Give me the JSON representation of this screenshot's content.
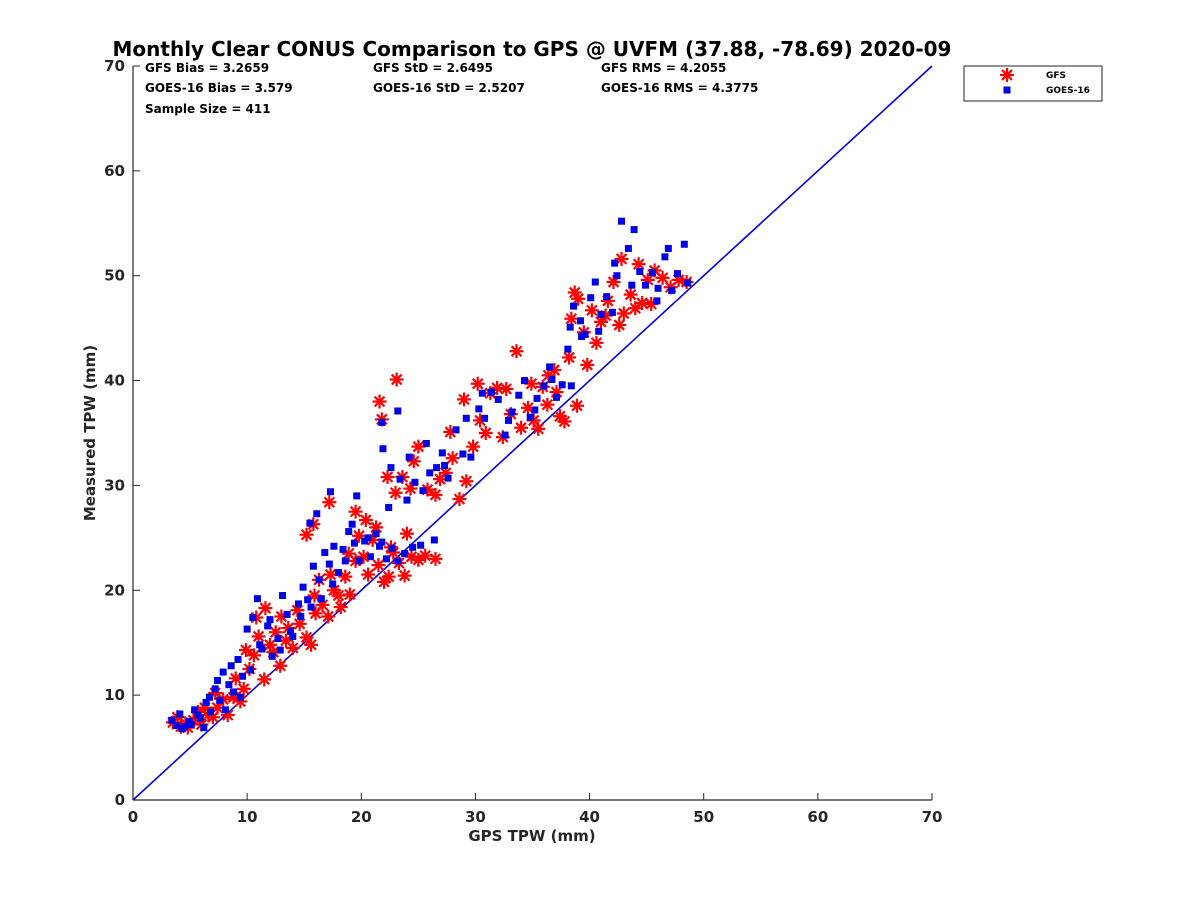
{
  "chart_data": {
    "type": "scatter",
    "title": "Monthly Clear CONUS Comparison to GPS @ UVFM (37.88, -78.69) 2020-09",
    "xlabel": "GPS TPW (mm)",
    "ylabel": "Measured TPW (mm)",
    "xlim": [
      0,
      70
    ],
    "ylim": [
      0,
      70
    ],
    "xticks": [
      0,
      10,
      20,
      30,
      40,
      50,
      60,
      70
    ],
    "yticks": [
      0,
      10,
      20,
      30,
      40,
      50,
      60,
      70
    ],
    "grid": false,
    "legend_position": "top-right, outside plot",
    "reference_line": {
      "x": [
        0,
        70
      ],
      "y": [
        0,
        70
      ],
      "color": "#0000e6"
    },
    "stats": [
      "GFS Bias = 3.2659",
      "GFS StD = 2.6495",
      "GFS RMS = 4.2055",
      "GOES-16 Bias = 3.579",
      "GOES-16 StD = 2.5207",
      "GOES-16 RMS = 4.3775",
      "Sample Size = 411"
    ],
    "series": [
      {
        "name": "GFS",
        "marker": "asterisk",
        "color": "#ff0000",
        "points": [
          [
            3.5,
            7.4
          ],
          [
            4.2,
            7.0
          ],
          [
            4.8,
            6.9
          ],
          [
            5.3,
            7.6
          ],
          [
            6.0,
            7.2
          ],
          [
            6.6,
            8.1
          ],
          [
            7.0,
            7.9
          ],
          [
            7.4,
            8.8
          ],
          [
            7.9,
            9.6
          ],
          [
            8.3,
            8.1
          ],
          [
            8.8,
            9.8
          ],
          [
            9.4,
            9.4
          ],
          [
            9.7,
            10.6
          ],
          [
            10.2,
            12.5
          ],
          [
            10.6,
            13.8
          ],
          [
            11.0,
            15.6
          ],
          [
            11.5,
            11.5
          ],
          [
            12.0,
            14.8
          ],
          [
            12.5,
            16.0
          ],
          [
            13.0,
            17.5
          ],
          [
            13.6,
            16.4
          ],
          [
            14.0,
            14.5
          ],
          [
            14.6,
            16.8
          ],
          [
            15.2,
            15.5
          ],
          [
            15.6,
            14.8
          ],
          [
            16.0,
            17.8
          ],
          [
            16.6,
            18.6
          ],
          [
            17.1,
            17.5
          ],
          [
            17.6,
            20.0
          ],
          [
            18.2,
            18.4
          ],
          [
            18.6,
            21.3
          ],
          [
            19.0,
            19.6
          ],
          [
            19.5,
            22.8
          ],
          [
            19.8,
            25.2
          ],
          [
            20.2,
            23.2
          ],
          [
            20.6,
            21.5
          ],
          [
            21.0,
            24.8
          ],
          [
            21.5,
            22.4
          ],
          [
            22.0,
            20.8
          ],
          [
            22.4,
            21.3
          ],
          [
            22.8,
            23.6
          ],
          [
            23.3,
            22.6
          ],
          [
            23.8,
            21.4
          ],
          [
            24.4,
            23.2
          ],
          [
            25.0,
            22.9
          ],
          [
            25.6,
            23.3
          ],
          [
            26.5,
            23.0
          ],
          [
            15.2,
            25.3
          ],
          [
            15.8,
            26.3
          ],
          [
            17.2,
            28.4
          ],
          [
            19.5,
            27.5
          ],
          [
            21.6,
            38.0
          ],
          [
            23.1,
            40.1
          ],
          [
            21.8,
            36.3
          ],
          [
            22.3,
            30.8
          ],
          [
            23.0,
            29.3
          ],
          [
            23.6,
            30.8
          ],
          [
            24.3,
            29.7
          ],
          [
            25.0,
            33.7
          ],
          [
            24.6,
            32.3
          ],
          [
            25.8,
            29.6
          ],
          [
            26.5,
            29.1
          ],
          [
            27.4,
            31.2
          ],
          [
            28.0,
            32.6
          ],
          [
            28.6,
            28.7
          ],
          [
            29.2,
            30.4
          ],
          [
            29.8,
            33.7
          ],
          [
            30.4,
            36.2
          ],
          [
            30.9,
            35.0
          ],
          [
            31.3,
            38.8
          ],
          [
            31.9,
            39.3
          ],
          [
            32.4,
            34.6
          ],
          [
            33.1,
            36.8
          ],
          [
            33.6,
            42.8
          ],
          [
            34.0,
            35.5
          ],
          [
            34.6,
            37.4
          ],
          [
            35.1,
            36.2
          ],
          [
            35.5,
            35.4
          ],
          [
            35.9,
            39.4
          ],
          [
            36.4,
            40.5
          ],
          [
            36.9,
            41.0
          ],
          [
            37.4,
            36.6
          ],
          [
            37.8,
            36.1
          ],
          [
            38.2,
            42.2
          ],
          [
            38.4,
            45.9
          ],
          [
            38.7,
            48.4
          ],
          [
            39.0,
            47.8
          ],
          [
            39.5,
            44.6
          ],
          [
            39.8,
            41.5
          ],
          [
            40.2,
            46.7
          ],
          [
            40.6,
            43.6
          ],
          [
            41.0,
            45.6
          ],
          [
            41.6,
            47.6
          ],
          [
            42.1,
            49.4
          ],
          [
            42.6,
            45.3
          ],
          [
            43.0,
            46.4
          ],
          [
            43.6,
            48.2
          ],
          [
            44.0,
            46.9
          ],
          [
            44.6,
            47.4
          ],
          [
            45.1,
            49.6
          ],
          [
            45.7,
            50.5
          ],
          [
            46.4,
            49.8
          ],
          [
            47.1,
            48.9
          ],
          [
            47.8,
            49.6
          ],
          [
            48.5,
            49.4
          ],
          [
            3.9,
            7.9
          ],
          [
            4.6,
            7.3
          ],
          [
            5.7,
            8.4
          ],
          [
            6.3,
            8.8
          ],
          [
            7.2,
            10.2
          ],
          [
            9.0,
            11.6
          ],
          [
            9.9,
            14.3
          ],
          [
            10.8,
            17.4
          ],
          [
            11.6,
            18.3
          ],
          [
            12.3,
            14.1
          ],
          [
            12.9,
            12.8
          ],
          [
            13.4,
            15.2
          ],
          [
            14.4,
            18.1
          ],
          [
            15.9,
            19.5
          ],
          [
            16.3,
            21.0
          ],
          [
            17.3,
            21.5
          ],
          [
            18.0,
            19.5
          ],
          [
            18.9,
            23.5
          ],
          [
            20.4,
            26.7
          ],
          [
            21.3,
            26.0
          ],
          [
            22.6,
            24.1
          ],
          [
            24.0,
            25.4
          ],
          [
            26.9,
            30.6
          ],
          [
            27.8,
            35.1
          ],
          [
            29.0,
            38.2
          ],
          [
            30.2,
            39.7
          ],
          [
            32.7,
            39.2
          ],
          [
            34.9,
            39.7
          ],
          [
            36.3,
            37.7
          ],
          [
            37.1,
            38.9
          ],
          [
            38.9,
            37.6
          ],
          [
            41.4,
            46.2
          ],
          [
            42.8,
            51.6
          ],
          [
            44.3,
            51.1
          ],
          [
            45.4,
            47.3
          ]
        ]
      },
      {
        "name": "GOES-16",
        "marker": "square",
        "color": "#0000e6",
        "points": [
          [
            3.4,
            7.6
          ],
          [
            3.8,
            7.1
          ],
          [
            4.1,
            8.2
          ],
          [
            4.5,
            7.0
          ],
          [
            4.9,
            7.5
          ],
          [
            5.4,
            8.6
          ],
          [
            5.9,
            7.8
          ],
          [
            6.4,
            9.3
          ],
          [
            6.8,
            8.4
          ],
          [
            7.2,
            10.6
          ],
          [
            7.6,
            9.5
          ],
          [
            7.9,
            12.2
          ],
          [
            8.4,
            11.0
          ],
          [
            8.8,
            10.3
          ],
          [
            9.2,
            13.4
          ],
          [
            9.6,
            11.8
          ],
          [
            10.0,
            16.3
          ],
          [
            10.5,
            17.4
          ],
          [
            10.9,
            19.2
          ],
          [
            11.3,
            14.4
          ],
          [
            11.8,
            16.6
          ],
          [
            12.2,
            13.7
          ],
          [
            12.7,
            15.4
          ],
          [
            13.1,
            19.5
          ],
          [
            13.5,
            17.7
          ],
          [
            14.0,
            15.6
          ],
          [
            14.5,
            18.7
          ],
          [
            14.9,
            20.3
          ],
          [
            15.3,
            19.1
          ],
          [
            15.8,
            22.3
          ],
          [
            16.3,
            21.0
          ],
          [
            16.8,
            23.6
          ],
          [
            17.2,
            22.5
          ],
          [
            17.6,
            24.2
          ],
          [
            18.0,
            21.7
          ],
          [
            18.4,
            23.9
          ],
          [
            18.9,
            25.6
          ],
          [
            19.4,
            24.5
          ],
          [
            19.8,
            22.8
          ],
          [
            20.3,
            24.7
          ],
          [
            20.8,
            23.2
          ],
          [
            21.3,
            25.4
          ],
          [
            21.8,
            24.6
          ],
          [
            22.2,
            23.0
          ],
          [
            22.7,
            24.0
          ],
          [
            23.2,
            22.8
          ],
          [
            23.8,
            23.5
          ],
          [
            24.5,
            24.1
          ],
          [
            25.2,
            24.3
          ],
          [
            26.4,
            24.8
          ],
          [
            15.5,
            26.4
          ],
          [
            16.1,
            27.3
          ],
          [
            17.3,
            29.4
          ],
          [
            19.6,
            29.0
          ],
          [
            21.8,
            36.0
          ],
          [
            23.2,
            37.1
          ],
          [
            21.9,
            33.5
          ],
          [
            22.6,
            31.7
          ],
          [
            23.4,
            30.6
          ],
          [
            24.0,
            28.6
          ],
          [
            24.7,
            30.3
          ],
          [
            25.4,
            29.5
          ],
          [
            26.0,
            31.2
          ],
          [
            26.6,
            31.7
          ],
          [
            27.1,
            33.1
          ],
          [
            27.6,
            30.7
          ],
          [
            28.3,
            35.3
          ],
          [
            28.9,
            33.0
          ],
          [
            29.6,
            32.7
          ],
          [
            30.3,
            37.3
          ],
          [
            30.8,
            36.4
          ],
          [
            31.4,
            38.9
          ],
          [
            32.0,
            38.2
          ],
          [
            32.6,
            34.8
          ],
          [
            33.2,
            37.0
          ],
          [
            33.8,
            38.6
          ],
          [
            34.3,
            40.0
          ],
          [
            34.8,
            36.5
          ],
          [
            35.4,
            38.3
          ],
          [
            36.0,
            39.5
          ],
          [
            36.5,
            41.3
          ],
          [
            37.1,
            38.4
          ],
          [
            37.6,
            39.6
          ],
          [
            38.1,
            43.0
          ],
          [
            38.3,
            45.1
          ],
          [
            38.6,
            47.1
          ],
          [
            39.2,
            45.7
          ],
          [
            39.6,
            44.4
          ],
          [
            40.1,
            47.9
          ],
          [
            40.5,
            49.4
          ],
          [
            41.0,
            46.3
          ],
          [
            41.5,
            48.0
          ],
          [
            42.0,
            46.5
          ],
          [
            42.4,
            50.0
          ],
          [
            42.8,
            55.2
          ],
          [
            43.4,
            52.6
          ],
          [
            43.9,
            54.4
          ],
          [
            44.4,
            50.4
          ],
          [
            44.9,
            49.1
          ],
          [
            45.5,
            50.3
          ],
          [
            46.0,
            48.8
          ],
          [
            46.6,
            51.8
          ],
          [
            47.2,
            48.6
          ],
          [
            47.7,
            50.2
          ],
          [
            48.3,
            53.0
          ],
          [
            48.6,
            49.3
          ],
          [
            4.3,
            6.8
          ],
          [
            5.1,
            7.2
          ],
          [
            5.7,
            8.1
          ],
          [
            6.2,
            6.9
          ],
          [
            6.7,
            9.8
          ],
          [
            7.4,
            11.4
          ],
          [
            8.1,
            8.6
          ],
          [
            8.6,
            12.8
          ],
          [
            9.4,
            9.8
          ],
          [
            10.3,
            12.4
          ],
          [
            11.1,
            14.8
          ],
          [
            12.0,
            17.2
          ],
          [
            12.9,
            14.3
          ],
          [
            13.8,
            16.1
          ],
          [
            14.7,
            17.5
          ],
          [
            15.6,
            18.4
          ],
          [
            16.5,
            19.2
          ],
          [
            17.5,
            20.6
          ],
          [
            18.6,
            22.8
          ],
          [
            19.2,
            26.3
          ],
          [
            20.6,
            25.0
          ],
          [
            21.6,
            24.2
          ],
          [
            22.4,
            27.9
          ],
          [
            24.2,
            32.7
          ],
          [
            25.7,
            34.0
          ],
          [
            27.3,
            31.9
          ],
          [
            29.2,
            36.4
          ],
          [
            30.6,
            38.8
          ],
          [
            32.9,
            36.2
          ],
          [
            35.2,
            37.2
          ],
          [
            36.7,
            40.1
          ],
          [
            38.4,
            39.5
          ],
          [
            39.3,
            44.2
          ],
          [
            40.8,
            44.7
          ],
          [
            42.2,
            51.2
          ],
          [
            43.7,
            49.1
          ],
          [
            45.9,
            47.6
          ],
          [
            46.9,
            52.6
          ]
        ]
      }
    ]
  }
}
